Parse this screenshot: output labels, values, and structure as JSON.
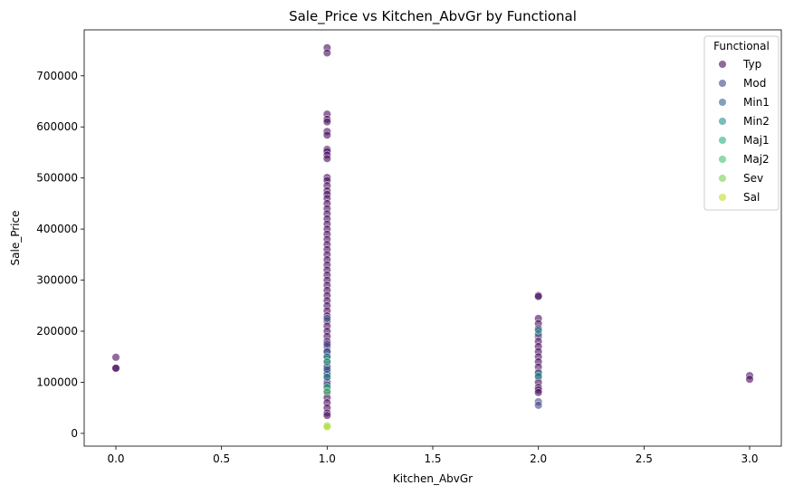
{
  "chart_data": {
    "type": "scatter",
    "title": "Sale_Price vs Kitchen_AbvGr by Functional",
    "xlabel": "Kitchen_AbvGr",
    "ylabel": "Sale_Price",
    "xlim": [
      -0.15,
      3.15
    ],
    "ylim": [
      -25000,
      790000
    ],
    "xticks": [
      0.0,
      0.5,
      1.0,
      1.5,
      2.0,
      2.5,
      3.0
    ],
    "xtick_labels": [
      "0.0",
      "0.5",
      "1.0",
      "1.5",
      "2.0",
      "2.5",
      "3.0"
    ],
    "yticks": [
      0,
      100000,
      200000,
      300000,
      400000,
      500000,
      600000,
      700000
    ],
    "ytick_labels": [
      "0",
      "100000",
      "200000",
      "300000",
      "400000",
      "500000",
      "600000",
      "700000"
    ],
    "grid": false,
    "legend": {
      "title": "Functional",
      "placement": "top-right"
    },
    "series": [
      {
        "name": "Typ",
        "color": "#46085c",
        "points": [
          [
            0,
            149000
          ],
          [
            0,
            128000
          ],
          [
            0,
            127500
          ],
          [
            1,
            755000
          ],
          [
            1,
            745000
          ],
          [
            1,
            625000
          ],
          [
            1,
            615000
          ],
          [
            1,
            610000
          ],
          [
            1,
            591000
          ],
          [
            1,
            584000
          ],
          [
            1,
            556000
          ],
          [
            1,
            552000
          ],
          [
            1,
            545000
          ],
          [
            1,
            538000
          ],
          [
            1,
            501000
          ],
          [
            1,
            495000
          ],
          [
            1,
            485000
          ],
          [
            1,
            475000
          ],
          [
            1,
            468000
          ],
          [
            1,
            460000
          ],
          [
            1,
            450000
          ],
          [
            1,
            440000
          ],
          [
            1,
            430000
          ],
          [
            1,
            420000
          ],
          [
            1,
            410000
          ],
          [
            1,
            400000
          ],
          [
            1,
            390000
          ],
          [
            1,
            380000
          ],
          [
            1,
            370000
          ],
          [
            1,
            360000
          ],
          [
            1,
            350000
          ],
          [
            1,
            340000
          ],
          [
            1,
            330000
          ],
          [
            1,
            320000
          ],
          [
            1,
            310000
          ],
          [
            1,
            300000
          ],
          [
            1,
            290000
          ],
          [
            1,
            280000
          ],
          [
            1,
            270000
          ],
          [
            1,
            260000
          ],
          [
            1,
            250000
          ],
          [
            1,
            240000
          ],
          [
            1,
            230000
          ],
          [
            1,
            220000
          ],
          [
            1,
            210000
          ],
          [
            1,
            200000
          ],
          [
            1,
            190000
          ],
          [
            1,
            180000
          ],
          [
            1,
            170000
          ],
          [
            1,
            160000
          ],
          [
            1,
            150000
          ],
          [
            1,
            140000
          ],
          [
            1,
            130000
          ],
          [
            1,
            120000
          ],
          [
            1,
            110000
          ],
          [
            1,
            100000
          ],
          [
            1,
            90000
          ],
          [
            1,
            80000
          ],
          [
            1,
            70000
          ],
          [
            1,
            60000
          ],
          [
            1,
            50000
          ],
          [
            1,
            40000
          ],
          [
            1,
            35000
          ],
          [
            2,
            270000
          ],
          [
            2,
            268000
          ],
          [
            2,
            225000
          ],
          [
            2,
            215000
          ],
          [
            2,
            205000
          ],
          [
            2,
            190000
          ],
          [
            2,
            180000
          ],
          [
            2,
            170000
          ],
          [
            2,
            160000
          ],
          [
            2,
            150000
          ],
          [
            2,
            140000
          ],
          [
            2,
            130000
          ],
          [
            2,
            120000
          ],
          [
            2,
            110000
          ],
          [
            2,
            100000
          ],
          [
            2,
            90000
          ],
          [
            2,
            85000
          ],
          [
            2,
            80000
          ],
          [
            3,
            113000
          ],
          [
            3,
            106000
          ]
        ]
      },
      {
        "name": "Mod",
        "color": "#414487",
        "points": [
          [
            1,
            175000
          ],
          [
            1,
            130000
          ],
          [
            1,
            115000
          ],
          [
            1,
            95000
          ],
          [
            2,
            62000
          ],
          [
            2,
            55000
          ]
        ]
      },
      {
        "name": "Min1",
        "color": "#355f8d",
        "points": [
          [
            1,
            225000
          ],
          [
            1,
            160000
          ],
          [
            1,
            125000
          ],
          [
            2,
            195000
          ],
          [
            2,
            118000
          ]
        ]
      },
      {
        "name": "Min2",
        "color": "#21918c",
        "points": [
          [
            1,
            150000
          ],
          [
            1,
            110000
          ],
          [
            2,
            202000
          ],
          [
            2,
            112000
          ]
        ]
      },
      {
        "name": "Maj1",
        "color": "#2ab07f",
        "points": [
          [
            1,
            140000
          ],
          [
            1,
            90000
          ]
        ]
      },
      {
        "name": "Maj2",
        "color": "#44bf70",
        "points": [
          [
            1,
            82000
          ]
        ]
      },
      {
        "name": "Sev",
        "color": "#7ad151",
        "points": [
          [
            1,
            15000
          ]
        ]
      },
      {
        "name": "Sal",
        "color": "#bddf26",
        "points": [
          [
            1,
            13000
          ]
        ]
      }
    ]
  }
}
